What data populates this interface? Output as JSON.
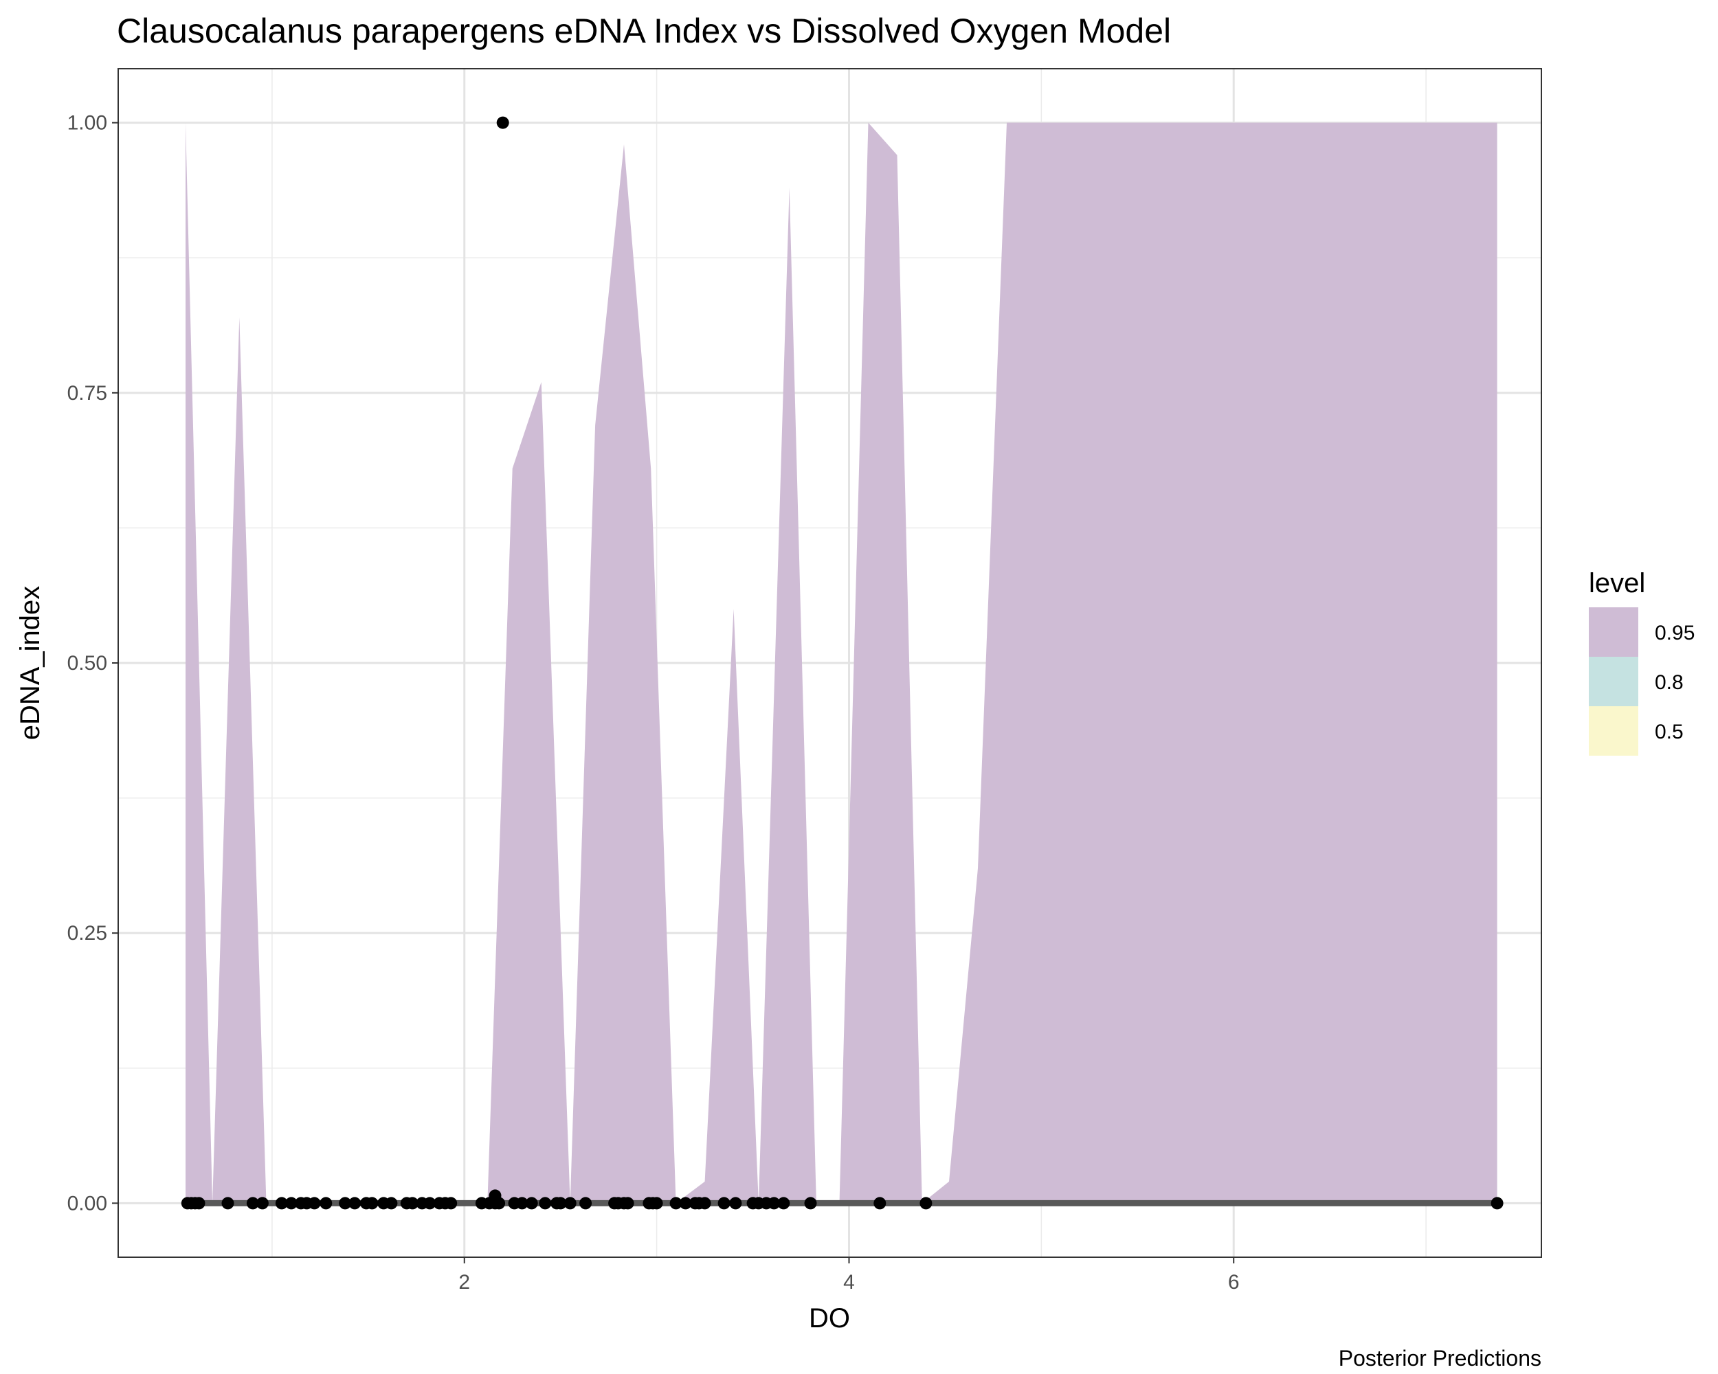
{
  "chart_data": {
    "type": "area",
    "title": "Clausocalanus parapergens eDNA Index vs Dissolved Oxygen Model",
    "xlabel": "DO",
    "ylabel": "eDNA_index",
    "caption": "Posterior Predictions",
    "xlim": [
      0.2,
      7.6
    ],
    "ylim": [
      -0.05,
      1.05
    ],
    "x_ticks": [
      2,
      4,
      6
    ],
    "y_ticks": [
      0.0,
      0.25,
      0.5,
      0.75,
      1.0
    ],
    "x_tick_labels": [
      "2",
      "4",
      "6"
    ],
    "y_tick_labels": [
      "0.00",
      "0.25",
      "0.50",
      "0.75",
      "1.00"
    ],
    "grid": true,
    "legend": {
      "title": "level",
      "position": "right",
      "entries": [
        {
          "label": "0.95",
          "color": "#cfbcd5"
        },
        {
          "label": "0.8",
          "color": "#c5e2e1"
        },
        {
          "label": "0.5",
          "color": "#faf7cc"
        }
      ]
    },
    "interval_095": {
      "x": [
        0.55,
        0.55,
        0.69,
        0.69,
        0.83,
        0.97,
        0.97,
        2.12,
        2.25,
        2.4,
        2.55,
        2.68,
        2.83,
        2.97,
        3.1,
        3.25,
        3.4,
        3.53,
        3.69,
        3.83,
        3.95,
        4.1,
        4.25,
        4.38,
        4.52,
        4.67,
        4.82,
        7.37
      ],
      "upper": [
        0.0,
        1.0,
        0.0,
        0.0,
        0.82,
        0.0,
        0.0,
        0.0,
        0.68,
        0.76,
        0.0,
        0.72,
        0.98,
        0.68,
        0.0,
        0.02,
        0.55,
        0.0,
        0.94,
        0.0,
        0.0,
        1.0,
        0.97,
        0.0,
        0.02,
        0.31,
        1.0,
        1.0
      ],
      "lower": [
        0.0,
        0.0,
        0.0,
        0.0,
        0.0,
        0.0,
        0.0,
        0.0,
        0.0,
        0.0,
        0.0,
        0.0,
        0.0,
        0.0,
        0.0,
        0.0,
        0.0,
        0.0,
        0.0,
        0.0,
        0.0,
        0.0,
        0.0,
        0.0,
        0.0,
        0.0,
        0.0,
        0.0
      ]
    },
    "median_line": {
      "x": [
        0.55,
        7.37
      ],
      "y": [
        0.0,
        0.0
      ]
    },
    "points": {
      "x": [
        0.56,
        0.58,
        0.6,
        0.62,
        0.77,
        0.9,
        0.95,
        1.05,
        1.1,
        1.15,
        1.18,
        1.22,
        1.28,
        1.38,
        1.43,
        1.49,
        1.52,
        1.58,
        1.62,
        1.7,
        1.73,
        1.78,
        1.82,
        1.87,
        1.9,
        1.93,
        2.09,
        2.13,
        2.16,
        2.18,
        2.26,
        2.3,
        2.35,
        2.42,
        2.48,
        2.5,
        2.55,
        2.63,
        2.78,
        2.8,
        2.83,
        2.85,
        2.96,
        2.98,
        3.0,
        3.1,
        3.15,
        3.2,
        3.22,
        3.25,
        3.35,
        3.41,
        3.5,
        3.53,
        3.57,
        3.61,
        3.66,
        3.8,
        4.16,
        4.4,
        7.37,
        2.16,
        2.2
      ],
      "y": [
        0,
        0,
        0,
        0,
        0,
        0,
        0,
        0,
        0,
        0,
        0,
        0,
        0,
        0,
        0,
        0,
        0,
        0,
        0,
        0,
        0,
        0,
        0,
        0,
        0,
        0,
        0,
        0,
        0,
        0,
        0,
        0,
        0,
        0,
        0,
        0,
        0,
        0,
        0,
        0,
        0,
        0,
        0,
        0,
        0,
        0,
        0,
        0,
        0,
        0,
        0,
        0,
        0,
        0,
        0,
        0,
        0,
        0,
        0,
        0,
        0,
        0.007,
        1.0
      ]
    }
  }
}
